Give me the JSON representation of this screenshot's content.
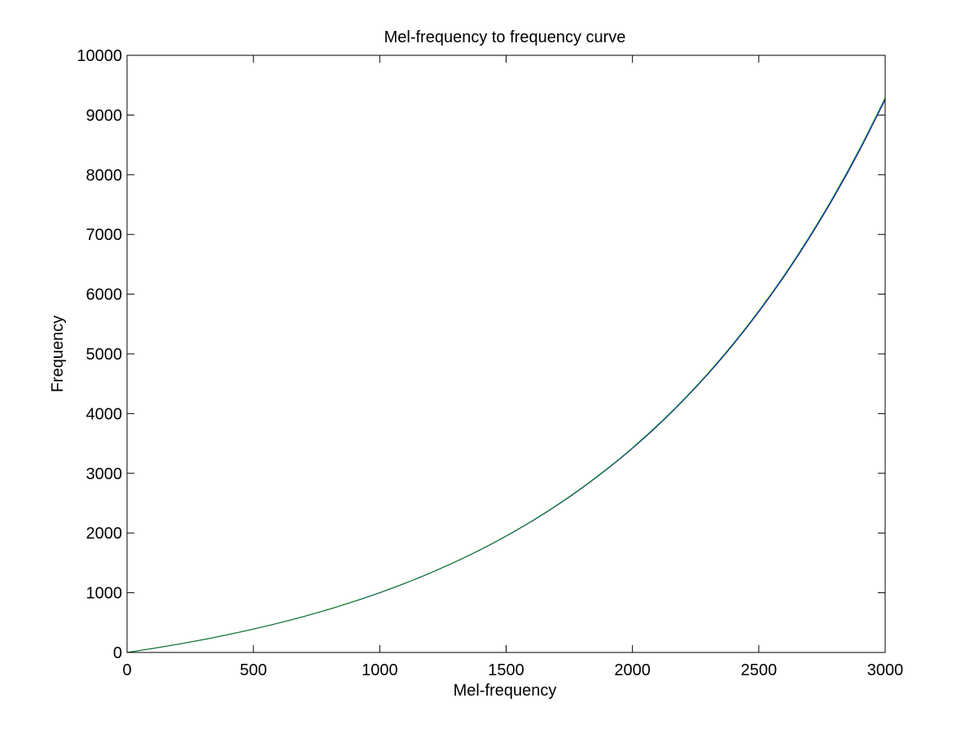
{
  "colors": {
    "background": "#ffffff",
    "axes": "#000000",
    "series_blue": "#0000ff",
    "series_green": "#008000"
  },
  "chart_data": {
    "type": "line",
    "title": "Mel-frequency to frequency curve",
    "xlabel": "Mel-frequency",
    "ylabel": "Frequency",
    "xlim": [
      0,
      3000
    ],
    "ylim": [
      0,
      10000
    ],
    "xticks": [
      0,
      500,
      1000,
      1500,
      2000,
      2500,
      3000
    ],
    "yticks": [
      0,
      1000,
      2000,
      3000,
      4000,
      5000,
      6000,
      7000,
      8000,
      9000,
      10000
    ],
    "grid": false,
    "legend": "none",
    "series": [
      {
        "color": "#0000ff",
        "x": [
          0,
          100,
          200,
          300,
          400,
          500,
          600,
          700,
          800,
          900,
          1000,
          1100,
          1200,
          1300,
          1400,
          1500,
          1600,
          1700,
          1800,
          1900,
          2000,
          2100,
          2200,
          2300,
          2400,
          2500,
          2600,
          2700,
          2800,
          2900,
          3000
        ],
        "y": [
          0,
          65,
          136,
          213,
          298,
          391,
          492,
          603,
          723,
          856,
          1000,
          1158,
          1330,
          1518,
          1723,
          1947,
          2192,
          2459,
          2751,
          3070,
          3418,
          3798,
          4214,
          4667,
          5163,
          5704,
          6294,
          6940,
          7645,
          8415,
          9256
        ]
      },
      {
        "color": "#008000",
        "x": [
          0,
          100,
          200,
          300,
          400,
          500,
          600,
          700,
          800,
          900,
          1000,
          1100,
          1200,
          1300,
          1400,
          1500,
          1600,
          1700,
          1800,
          1900,
          2000,
          2100,
          2200,
          2300,
          2400,
          2500,
          2600,
          2700,
          2800,
          2900,
          3000
        ],
        "y": [
          0,
          66,
          137,
          214,
          299,
          392,
          493,
          604,
          725,
          858,
          1002,
          1160,
          1333,
          1521,
          1726,
          1951,
          2197,
          2465,
          2758,
          3078,
          3427,
          3809,
          4226,
          4681,
          5179,
          5722,
          6315,
          6963,
          7670,
          8443,
          9287
        ]
      }
    ]
  }
}
